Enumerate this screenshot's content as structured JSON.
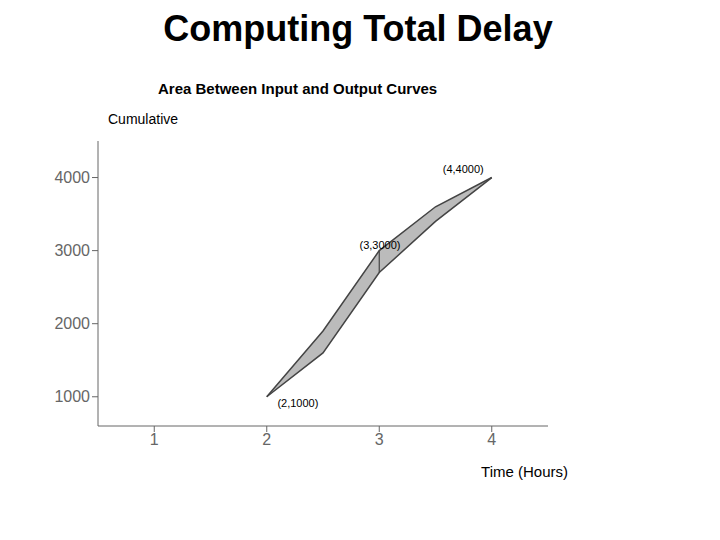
{
  "chart_data": {
    "type": "line",
    "title": "Computing Total Delay",
    "subtitle": "Area Between Input and Output Curves",
    "ylabel": "Cumulative",
    "xlabel": "Time (Hours)",
    "x": [
      2.0,
      2.5,
      3.0,
      3.5,
      4.0
    ],
    "series": [
      {
        "color": "#444444",
        "values": [
          1000,
          1900,
          3000,
          3600,
          4000
        ]
      },
      {
        "color": "#444444",
        "values": [
          1000,
          1600,
          2700,
          3400,
          4000
        ]
      }
    ],
    "color": "#bbbbbb",
    "annotations": [
      {
        "label": "(2,1000)",
        "x": 2.05,
        "y": 920
      },
      {
        "label": "(3,3000)",
        "x": 2.78,
        "y": 3080
      },
      {
        "label": "(4,4000)",
        "x": 3.52,
        "y": 4120
      }
    ],
    "segments": [
      {
        "x": [
          3.0,
          3.0
        ],
        "y": [
          2700,
          3000
        ]
      }
    ],
    "xlim": [
      0.5,
      4.5
    ],
    "ylim": [
      600,
      4500
    ],
    "xticks": [
      1,
      2,
      3,
      4
    ],
    "yticks": [
      1000,
      2000,
      3000,
      4000
    ],
    "grid": false
  }
}
